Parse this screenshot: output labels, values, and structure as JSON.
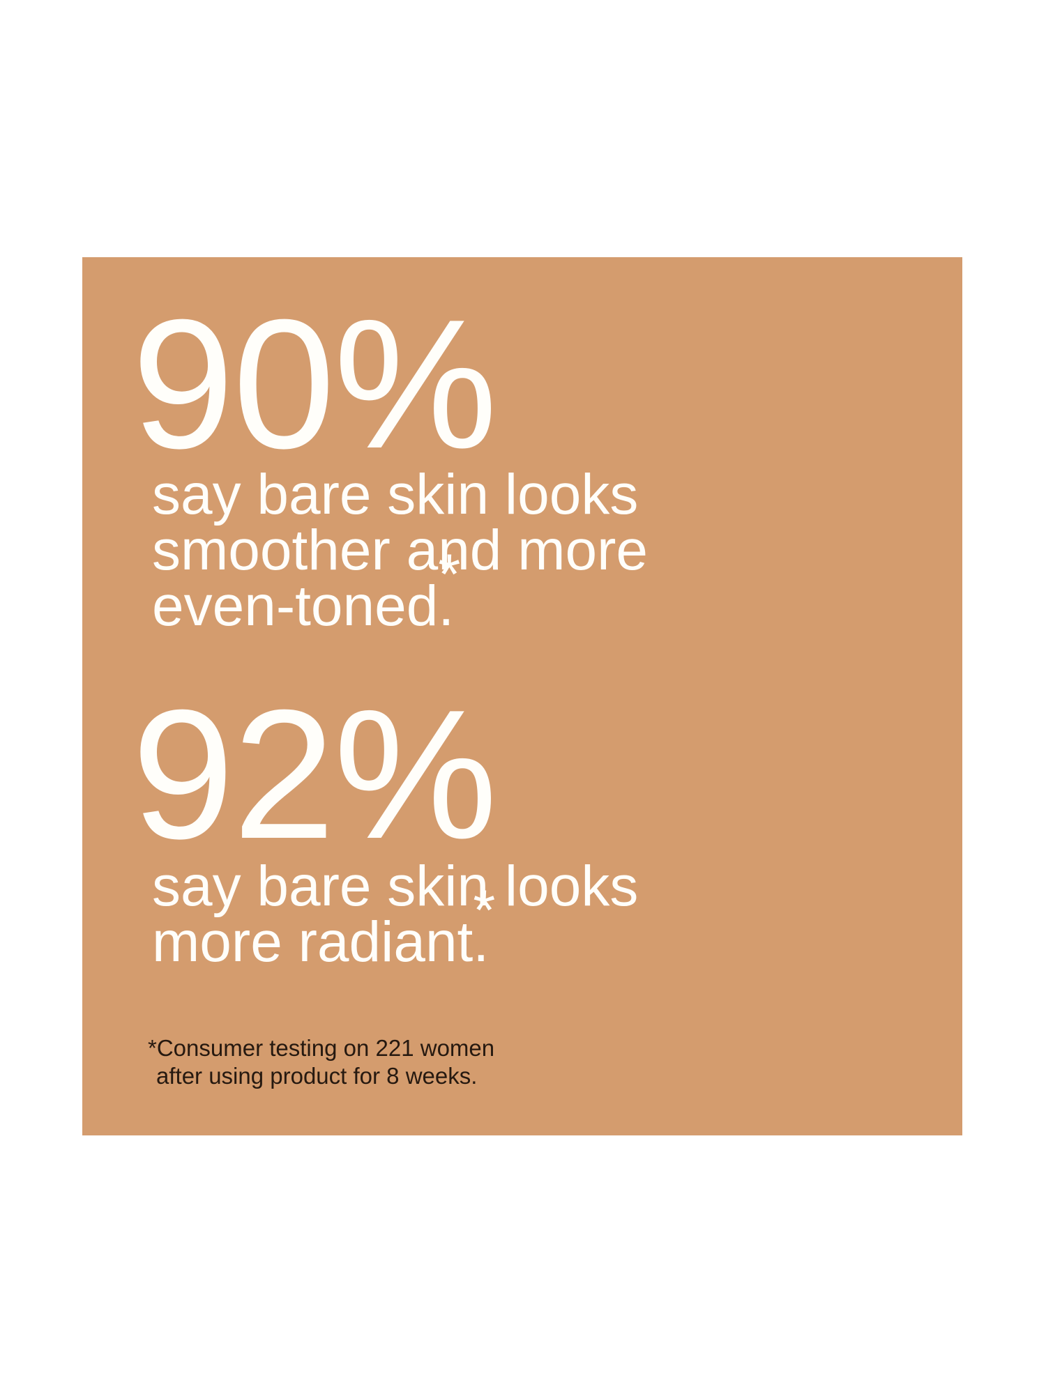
{
  "colors": {
    "page_background": "#ffffff",
    "card_background": "#d49c6e",
    "stat_text": "#fffefa",
    "footnote_text": "#261910"
  },
  "stat1": {
    "value": "90%",
    "line1": "say bare skin looks",
    "line2": "smoother and more",
    "line3": "even-toned",
    "period": ".",
    "asterisk": "*"
  },
  "stat2": {
    "value": "92%",
    "line1": "say bare skin looks",
    "line2": "more radiant",
    "period": ".",
    "asterisk": "*"
  },
  "footnote": {
    "line1": "*Consumer testing on 221 women",
    "line2": "after using product for 8 weeks."
  }
}
